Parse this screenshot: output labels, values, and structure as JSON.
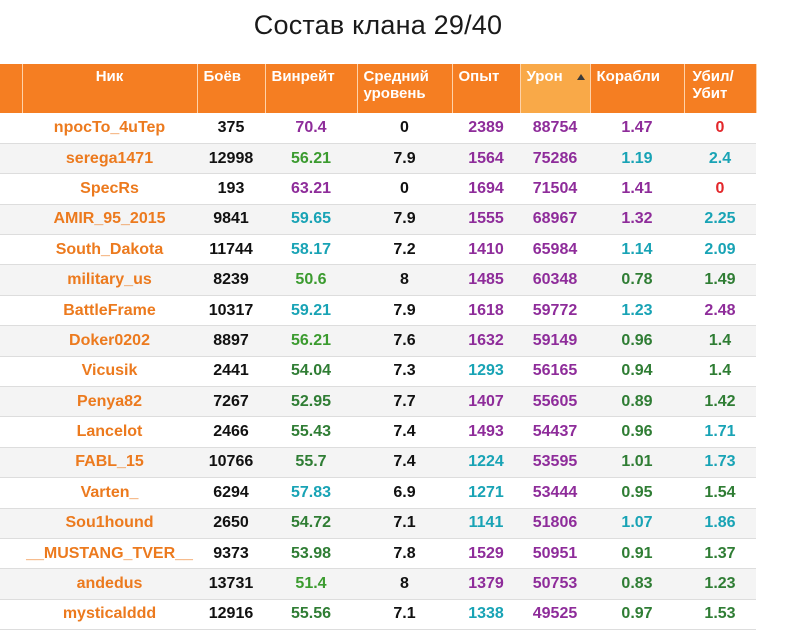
{
  "page": {
    "title": "Состав клана 29/40"
  },
  "table": {
    "headers": {
      "nick": "Ник",
      "battles": "Боёв",
      "winrate": "Винрейт",
      "avg_level": [
        "Средний",
        "уровень"
      ],
      "exp": "Опыт",
      "damage": "Урон",
      "ships": "Корабли",
      "kill_death": [
        "Убил/",
        "Убит"
      ]
    },
    "sorted_column": "damage",
    "colors": {
      "header_bg": "#f57e22",
      "header_sorted_bg": "#f9a948",
      "name": "#ec7a1e",
      "purple": "#8e2c9a",
      "green": "#3b9b2f",
      "teal": "#18a3b5",
      "red": "#e3262a"
    },
    "rows": [
      {
        "nick": "npocTo_4uTep",
        "battles": "375",
        "winrate": "70.4",
        "wr_color": "purple",
        "avg_level": "0",
        "exp": "2389",
        "exp_color": "purple",
        "damage": "88754",
        "ships": "1.47",
        "ships_color": "purple",
        "kd": "0",
        "kd_color": "red"
      },
      {
        "nick": "serega1471",
        "battles": "12998",
        "winrate": "56.21",
        "wr_color": "green",
        "avg_level": "7.9",
        "exp": "1564",
        "exp_color": "purple",
        "damage": "75286",
        "ships": "1.19",
        "ships_color": "teal",
        "kd": "2.4",
        "kd_color": "teal"
      },
      {
        "nick": "SpecRs",
        "battles": "193",
        "winrate": "63.21",
        "wr_color": "purple",
        "avg_level": "0",
        "exp": "1694",
        "exp_color": "purple",
        "damage": "71504",
        "ships": "1.41",
        "ships_color": "purple",
        "kd": "0",
        "kd_color": "red"
      },
      {
        "nick": "AMIR_95_2015",
        "battles": "9841",
        "winrate": "59.65",
        "wr_color": "teal",
        "avg_level": "7.9",
        "exp": "1555",
        "exp_color": "purple",
        "damage": "68967",
        "ships": "1.32",
        "ships_color": "purple",
        "kd": "2.25",
        "kd_color": "teal"
      },
      {
        "nick": "South_Dakota",
        "battles": "11744",
        "winrate": "58.17",
        "wr_color": "teal",
        "avg_level": "7.2",
        "exp": "1410",
        "exp_color": "purple",
        "damage": "65984",
        "ships": "1.14",
        "ships_color": "teal",
        "kd": "2.09",
        "kd_color": "teal"
      },
      {
        "nick": "military_us",
        "battles": "8239",
        "winrate": "50.6",
        "wr_color": "green",
        "avg_level": "8",
        "exp": "1485",
        "exp_color": "purple",
        "damage": "60348",
        "ships": "0.78",
        "ships_color": "darkgreen",
        "kd": "1.49",
        "kd_color": "darkgreen"
      },
      {
        "nick": "BattleFrame",
        "battles": "10317",
        "winrate": "59.21",
        "wr_color": "teal",
        "avg_level": "7.9",
        "exp": "1618",
        "exp_color": "purple",
        "damage": "59772",
        "ships": "1.23",
        "ships_color": "teal",
        "kd": "2.48",
        "kd_color": "purple"
      },
      {
        "nick": "Doker0202",
        "battles": "8897",
        "winrate": "56.21",
        "wr_color": "green",
        "avg_level": "7.6",
        "exp": "1632",
        "exp_color": "purple",
        "damage": "59149",
        "ships": "0.96",
        "ships_color": "darkgreen",
        "kd": "1.4",
        "kd_color": "darkgreen"
      },
      {
        "nick": "Vicusik",
        "battles": "2441",
        "winrate": "54.04",
        "wr_color": "darkgreen",
        "avg_level": "7.3",
        "exp": "1293",
        "exp_color": "teal",
        "damage": "56165",
        "ships": "0.94",
        "ships_color": "darkgreen",
        "kd": "1.4",
        "kd_color": "darkgreen"
      },
      {
        "nick": "Penya82",
        "battles": "7267",
        "winrate": "52.95",
        "wr_color": "darkgreen",
        "avg_level": "7.7",
        "exp": "1407",
        "exp_color": "purple",
        "damage": "55605",
        "ships": "0.89",
        "ships_color": "darkgreen",
        "kd": "1.42",
        "kd_color": "darkgreen"
      },
      {
        "nick": "Lancelot",
        "battles": "2466",
        "winrate": "55.43",
        "wr_color": "darkgreen",
        "avg_level": "7.4",
        "exp": "1493",
        "exp_color": "purple",
        "damage": "54437",
        "ships": "0.96",
        "ships_color": "darkgreen",
        "kd": "1.71",
        "kd_color": "teal"
      },
      {
        "nick": "FABL_15",
        "battles": "10766",
        "winrate": "55.7",
        "wr_color": "darkgreen",
        "avg_level": "7.4",
        "exp": "1224",
        "exp_color": "teal",
        "damage": "53595",
        "ships": "1.01",
        "ships_color": "darkgreen",
        "kd": "1.73",
        "kd_color": "teal"
      },
      {
        "nick": "Varten_",
        "battles": "6294",
        "winrate": "57.83",
        "wr_color": "teal",
        "avg_level": "6.9",
        "exp": "1271",
        "exp_color": "teal",
        "damage": "53444",
        "ships": "0.95",
        "ships_color": "darkgreen",
        "kd": "1.54",
        "kd_color": "darkgreen"
      },
      {
        "nick": "Sou1hound",
        "battles": "2650",
        "winrate": "54.72",
        "wr_color": "darkgreen",
        "avg_level": "7.1",
        "exp": "1141",
        "exp_color": "teal",
        "damage": "51806",
        "ships": "1.07",
        "ships_color": "teal",
        "kd": "1.86",
        "kd_color": "teal"
      },
      {
        "nick": "__MUSTANG_TVER__",
        "battles": "9373",
        "winrate": "53.98",
        "wr_color": "darkgreen",
        "avg_level": "7.8",
        "exp": "1529",
        "exp_color": "purple",
        "damage": "50951",
        "ships": "0.91",
        "ships_color": "darkgreen",
        "kd": "1.37",
        "kd_color": "darkgreen"
      },
      {
        "nick": "andedus",
        "battles": "13731",
        "winrate": "51.4",
        "wr_color": "green",
        "avg_level": "8",
        "exp": "1379",
        "exp_color": "purple",
        "damage": "50753",
        "ships": "0.83",
        "ships_color": "darkgreen",
        "kd": "1.23",
        "kd_color": "darkgreen"
      },
      {
        "nick": "mysticalddd",
        "battles": "12916",
        "winrate": "55.56",
        "wr_color": "darkgreen",
        "avg_level": "7.1",
        "exp": "1338",
        "exp_color": "teal",
        "damage": "49525",
        "ships": "0.97",
        "ships_color": "darkgreen",
        "kd": "1.53",
        "kd_color": "darkgreen"
      }
    ]
  }
}
